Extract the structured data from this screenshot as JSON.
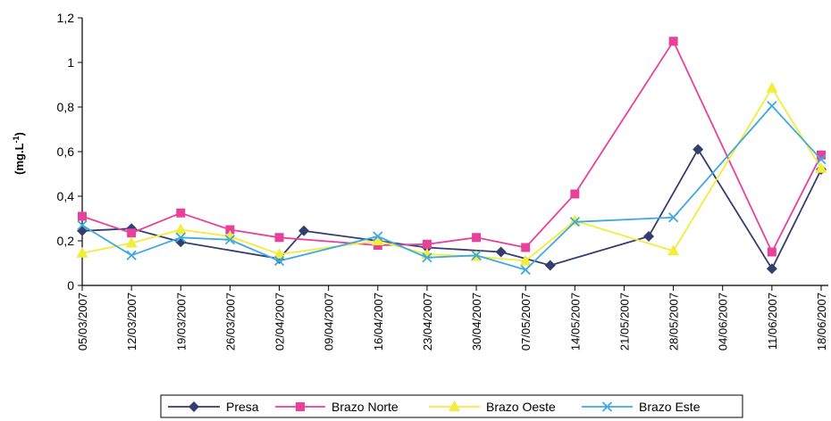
{
  "chart_data": {
    "type": "line",
    "title": "",
    "xlabel": "",
    "ylabel": "(mg.L-1)",
    "ylabel_main": "(mg.L",
    "ylabel_sup": "-1",
    "ylabel_close": ")",
    "ylim": [
      0,
      1.2
    ],
    "yticks": [
      "0",
      "0,2",
      "0,4",
      "0,6",
      "0,8",
      "1",
      "1,2"
    ],
    "categories": [
      "05/03/2007",
      "12/03/2007",
      "19/03/2007",
      "26/03/2007",
      "02/04/2007",
      "09/04/2007",
      "16/04/2007",
      "23/04/2007",
      "30/04/2007",
      "07/05/2007",
      "14/05/2007",
      "21/05/2007",
      "28/05/2007",
      "04/06/2007",
      "11/06/2007",
      "18/06/2007"
    ],
    "grid": false,
    "legend_position": "bottom",
    "series": [
      {
        "name": "Presa",
        "color": "#333d6e",
        "marker": "diamond",
        "points": [
          [
            0,
            0.245
          ],
          [
            1,
            0.255
          ],
          [
            2,
            0.195
          ],
          [
            4.5,
            0.245
          ],
          [
            4,
            0.12
          ],
          [
            7,
            0.17
          ],
          [
            8.5,
            0.15
          ],
          [
            9.5,
            0.09
          ],
          [
            11.5,
            0.22
          ],
          [
            12.5,
            0.61
          ],
          [
            14,
            0.075
          ],
          [
            15,
            0.52
          ]
        ]
      },
      {
        "name": "Brazo Norte",
        "color": "#e8419c",
        "marker": "square",
        "points": [
          [
            0,
            0.31
          ],
          [
            1,
            0.235
          ],
          [
            2,
            0.325
          ],
          [
            3,
            0.25
          ],
          [
            4,
            0.215
          ],
          [
            6,
            0.18
          ],
          [
            7,
            0.185
          ],
          [
            8,
            0.215
          ],
          [
            9,
            0.17
          ],
          [
            10,
            0.41
          ],
          [
            12,
            1.095
          ],
          [
            14,
            0.15
          ],
          [
            15,
            0.585
          ]
        ]
      },
      {
        "name": "Brazo Oeste",
        "color": "#f2ec3a",
        "marker": "triangle",
        "points": [
          [
            0,
            0.145
          ],
          [
            1,
            0.19
          ],
          [
            2,
            0.25
          ],
          [
            3,
            0.22
          ],
          [
            4,
            0.14
          ],
          [
            6,
            0.2
          ],
          [
            7,
            0.14
          ],
          [
            8,
            0.13
          ],
          [
            9,
            0.11
          ],
          [
            10,
            0.29
          ],
          [
            12,
            0.155
          ],
          [
            14,
            0.885
          ],
          [
            15,
            0.525
          ]
        ]
      },
      {
        "name": "Brazo Este",
        "color": "#3fa9e0",
        "marker": "x",
        "points": [
          [
            0,
            0.27
          ],
          [
            1,
            0.135
          ],
          [
            2,
            0.215
          ],
          [
            3,
            0.205
          ],
          [
            4,
            0.11
          ],
          [
            6,
            0.22
          ],
          [
            7,
            0.125
          ],
          [
            8,
            0.135
          ],
          [
            9,
            0.07
          ],
          [
            10,
            0.285
          ],
          [
            12,
            0.305
          ],
          [
            14,
            0.805
          ],
          [
            15,
            0.565
          ]
        ]
      }
    ]
  }
}
